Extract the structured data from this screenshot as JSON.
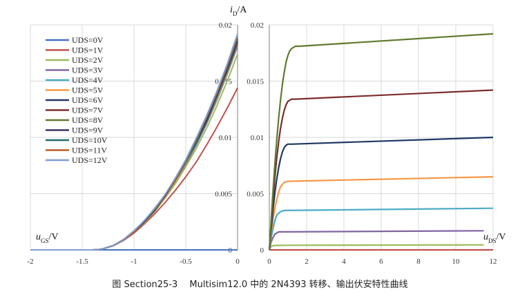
{
  "caption": "图 Section25-3　 Multisim12.0 中的 2N4393 转移、输出伏安特性曲线",
  "chart_data": [
    {
      "type": "line",
      "name": "transfer",
      "xlabel": {
        "sym": "u",
        "sub": "GS",
        "unit": "/V"
      },
      "ylabel": {
        "sym": "i",
        "sub": "D",
        "unit": "/A"
      },
      "xlim": [
        -2,
        0
      ],
      "ylim": [
        0,
        0.02
      ],
      "xticks": [
        "-2",
        "-1.5",
        "-1",
        "-0.5",
        "0"
      ],
      "yticks": [
        "0",
        "0.005",
        "0.01",
        "0.015",
        "0.02"
      ],
      "grid": true,
      "legend_position": "top-left",
      "x": [
        -2.0,
        -1.5,
        -1.4,
        -1.35,
        -1.3,
        -1.2,
        -1.1,
        -1.0,
        -0.9,
        -0.8,
        -0.7,
        -0.6,
        -0.5,
        -0.4,
        -0.3,
        -0.2,
        -0.1,
        0.0
      ],
      "series": [
        {
          "name": "UDS=0V",
          "color": "#4472C4",
          "values": [
            0,
            0,
            0,
            0,
            0,
            0,
            0,
            0,
            0,
            0,
            0,
            0,
            0,
            0,
            0,
            0,
            0,
            0
          ]
        },
        {
          "name": "UDS=1V",
          "color": "#C0504D",
          "values": [
            0,
            0,
            0,
            2e-05,
            9e-05,
            0.00037,
            0.00085,
            0.0015,
            0.0023,
            0.0032,
            0.0042,
            0.0053,
            0.0065,
            0.0078,
            0.0093,
            0.0109,
            0.0126,
            0.0144
          ]
        },
        {
          "name": "UDS=2V",
          "color": "#9BBB59",
          "values": [
            0,
            0,
            0,
            2e-05,
            9e-05,
            0.00038,
            0.00088,
            0.0016,
            0.0024,
            0.0034,
            0.0046,
            0.0059,
            0.0074,
            0.009,
            0.0108,
            0.0128,
            0.015,
            0.0174
          ]
        },
        {
          "name": "UDS=3V",
          "color": "#8064A2",
          "values": [
            0,
            0,
            0,
            2e-05,
            9e-05,
            0.00038,
            0.00089,
            0.0016,
            0.0025,
            0.0035,
            0.0047,
            0.0061,
            0.0076,
            0.0093,
            0.0112,
            0.0133,
            0.0156,
            0.0181
          ]
        },
        {
          "name": "UDS=4V",
          "color": "#4BACC6",
          "values": [
            0,
            0,
            0,
            2e-05,
            9e-05,
            0.00038,
            0.0009,
            0.0016,
            0.0025,
            0.0035,
            0.0047,
            0.0061,
            0.0077,
            0.0094,
            0.0113,
            0.0134,
            0.0157,
            0.0182
          ]
        },
        {
          "name": "UDS=5V",
          "color": "#F79646",
          "values": [
            0,
            0,
            0,
            2e-05,
            9e-05,
            0.00038,
            0.0009,
            0.0016,
            0.0025,
            0.0035,
            0.0047,
            0.0061,
            0.0077,
            0.0095,
            0.0114,
            0.0135,
            0.0158,
            0.0183
          ]
        },
        {
          "name": "UDS=6V",
          "color": "#1F3864",
          "values": [
            0,
            0,
            0,
            2e-05,
            9e-05,
            0.00038,
            0.0009,
            0.0016,
            0.0025,
            0.0035,
            0.0048,
            0.0062,
            0.0078,
            0.0095,
            0.0114,
            0.0136,
            0.0159,
            0.0184
          ]
        },
        {
          "name": "UDS=7V",
          "color": "#7B2C2C",
          "values": [
            0,
            0,
            0,
            2e-05,
            9e-05,
            0.00039,
            0.0009,
            0.0016,
            0.0025,
            0.0036,
            0.0048,
            0.0062,
            0.0078,
            0.0096,
            0.0115,
            0.0136,
            0.016,
            0.0185
          ]
        },
        {
          "name": "UDS=8V",
          "color": "#5E7A2E",
          "values": [
            0,
            0,
            0,
            2e-05,
            9e-05,
            0.00039,
            0.00091,
            0.0016,
            0.0025,
            0.0036,
            0.0048,
            0.0062,
            0.0078,
            0.0096,
            0.0116,
            0.0137,
            0.0161,
            0.0186
          ]
        },
        {
          "name": "UDS=9V",
          "color": "#3F2E5E",
          "values": [
            0,
            0,
            0,
            2e-05,
            9e-05,
            0.00039,
            0.00091,
            0.0016,
            0.0025,
            0.0036,
            0.0048,
            0.0063,
            0.0079,
            0.0097,
            0.0116,
            0.0138,
            0.0162,
            0.0187
          ]
        },
        {
          "name": "UDS=10V",
          "color": "#1F6B6B",
          "values": [
            0,
            0,
            0,
            2e-05,
            9e-05,
            0.00039,
            0.00092,
            0.0016,
            0.0026,
            0.0036,
            0.0049,
            0.0063,
            0.0079,
            0.0097,
            0.0117,
            0.0139,
            0.0163,
            0.0188
          ]
        },
        {
          "name": "UDS=11V",
          "color": "#B85C1E",
          "values": [
            0,
            0,
            0,
            2e-05,
            9e-05,
            0.00039,
            0.00092,
            0.0016,
            0.0026,
            0.0036,
            0.0049,
            0.0063,
            0.008,
            0.0098,
            0.0118,
            0.014,
            0.0164,
            0.019
          ]
        },
        {
          "name": "UDS=12V",
          "color": "#7F9CD3",
          "values": [
            0,
            0,
            0,
            2e-05,
            9e-05,
            0.0004,
            0.00093,
            0.0017,
            0.0026,
            0.0037,
            0.0049,
            0.0064,
            0.008,
            0.0099,
            0.0119,
            0.0141,
            0.0165,
            0.0192
          ]
        }
      ]
    },
    {
      "type": "line",
      "name": "output",
      "xlabel": {
        "sym": "u",
        "sub": "DS",
        "unit": "/V"
      },
      "ylabel": null,
      "xlim": [
        0,
        12
      ],
      "ylim": [
        0,
        0.02
      ],
      "xticks": [
        "0",
        "2",
        "4",
        "6",
        "8",
        "10",
        "12"
      ],
      "yticks": [
        "0",
        "0.005",
        "0.01",
        "0.015",
        "0.02"
      ],
      "grid": true,
      "series": [
        {
          "color": "#C0504D",
          "x": [
            0,
            12
          ],
          "y": [
            0,
            0
          ]
        },
        {
          "color": "#9BBB59",
          "x": [
            0,
            0.05,
            0.1,
            0.2,
            0.4,
            1,
            11.5
          ],
          "y": [
            0,
            0.0002,
            0.0003,
            0.00038,
            0.0004,
            0.00041,
            0.00045
          ]
        },
        {
          "color": "#8064A2",
          "x": [
            0,
            0.1,
            0.2,
            0.3,
            0.5,
            0.7,
            11.5
          ],
          "y": [
            0,
            0.0007,
            0.0011,
            0.0014,
            0.0016,
            0.0016,
            0.0017
          ]
        },
        {
          "color": "#4BACC6",
          "x": [
            0,
            0.1,
            0.2,
            0.3,
            0.4,
            0.6,
            0.8,
            12
          ],
          "y": [
            0,
            0.0011,
            0.0019,
            0.0026,
            0.0031,
            0.0034,
            0.0035,
            0.0037
          ]
        },
        {
          "color": "#F79646",
          "x": [
            0,
            0.1,
            0.2,
            0.3,
            0.4,
            0.5,
            0.6,
            0.8,
            1.0,
            12
          ],
          "y": [
            0,
            0.0015,
            0.0027,
            0.0037,
            0.0045,
            0.0051,
            0.0056,
            0.006,
            0.0061,
            0.0065
          ]
        },
        {
          "color": "#1F3864",
          "x": [
            0,
            0.1,
            0.2,
            0.3,
            0.4,
            0.5,
            0.6,
            0.7,
            0.8,
            0.9,
            1.0,
            1.2,
            12
          ],
          "y": [
            0,
            0.0019,
            0.0036,
            0.0051,
            0.0063,
            0.0073,
            0.0081,
            0.0087,
            0.0091,
            0.0093,
            0.0094,
            0.0094,
            0.01
          ]
        },
        {
          "color": "#7B2C2C",
          "x": [
            0,
            0.1,
            0.2,
            0.3,
            0.4,
            0.5,
            0.6,
            0.7,
            0.8,
            0.9,
            1.0,
            1.1,
            1.2,
            1.4,
            12
          ],
          "y": [
            0,
            0.0023,
            0.0045,
            0.0065,
            0.0082,
            0.0096,
            0.0108,
            0.0117,
            0.0124,
            0.0129,
            0.0132,
            0.0133,
            0.0134,
            0.0134,
            0.0142
          ]
        },
        {
          "color": "#5E7A2E",
          "x": [
            0,
            0.1,
            0.2,
            0.3,
            0.4,
            0.5,
            0.6,
            0.7,
            0.8,
            0.9,
            1.0,
            1.1,
            1.2,
            1.3,
            1.4,
            1.6,
            12
          ],
          "y": [
            0,
            0.0027,
            0.0053,
            0.0077,
            0.0098,
            0.0117,
            0.0133,
            0.0147,
            0.0158,
            0.0167,
            0.0173,
            0.0177,
            0.0179,
            0.018,
            0.0181,
            0.0181,
            0.0192
          ]
        }
      ]
    }
  ]
}
